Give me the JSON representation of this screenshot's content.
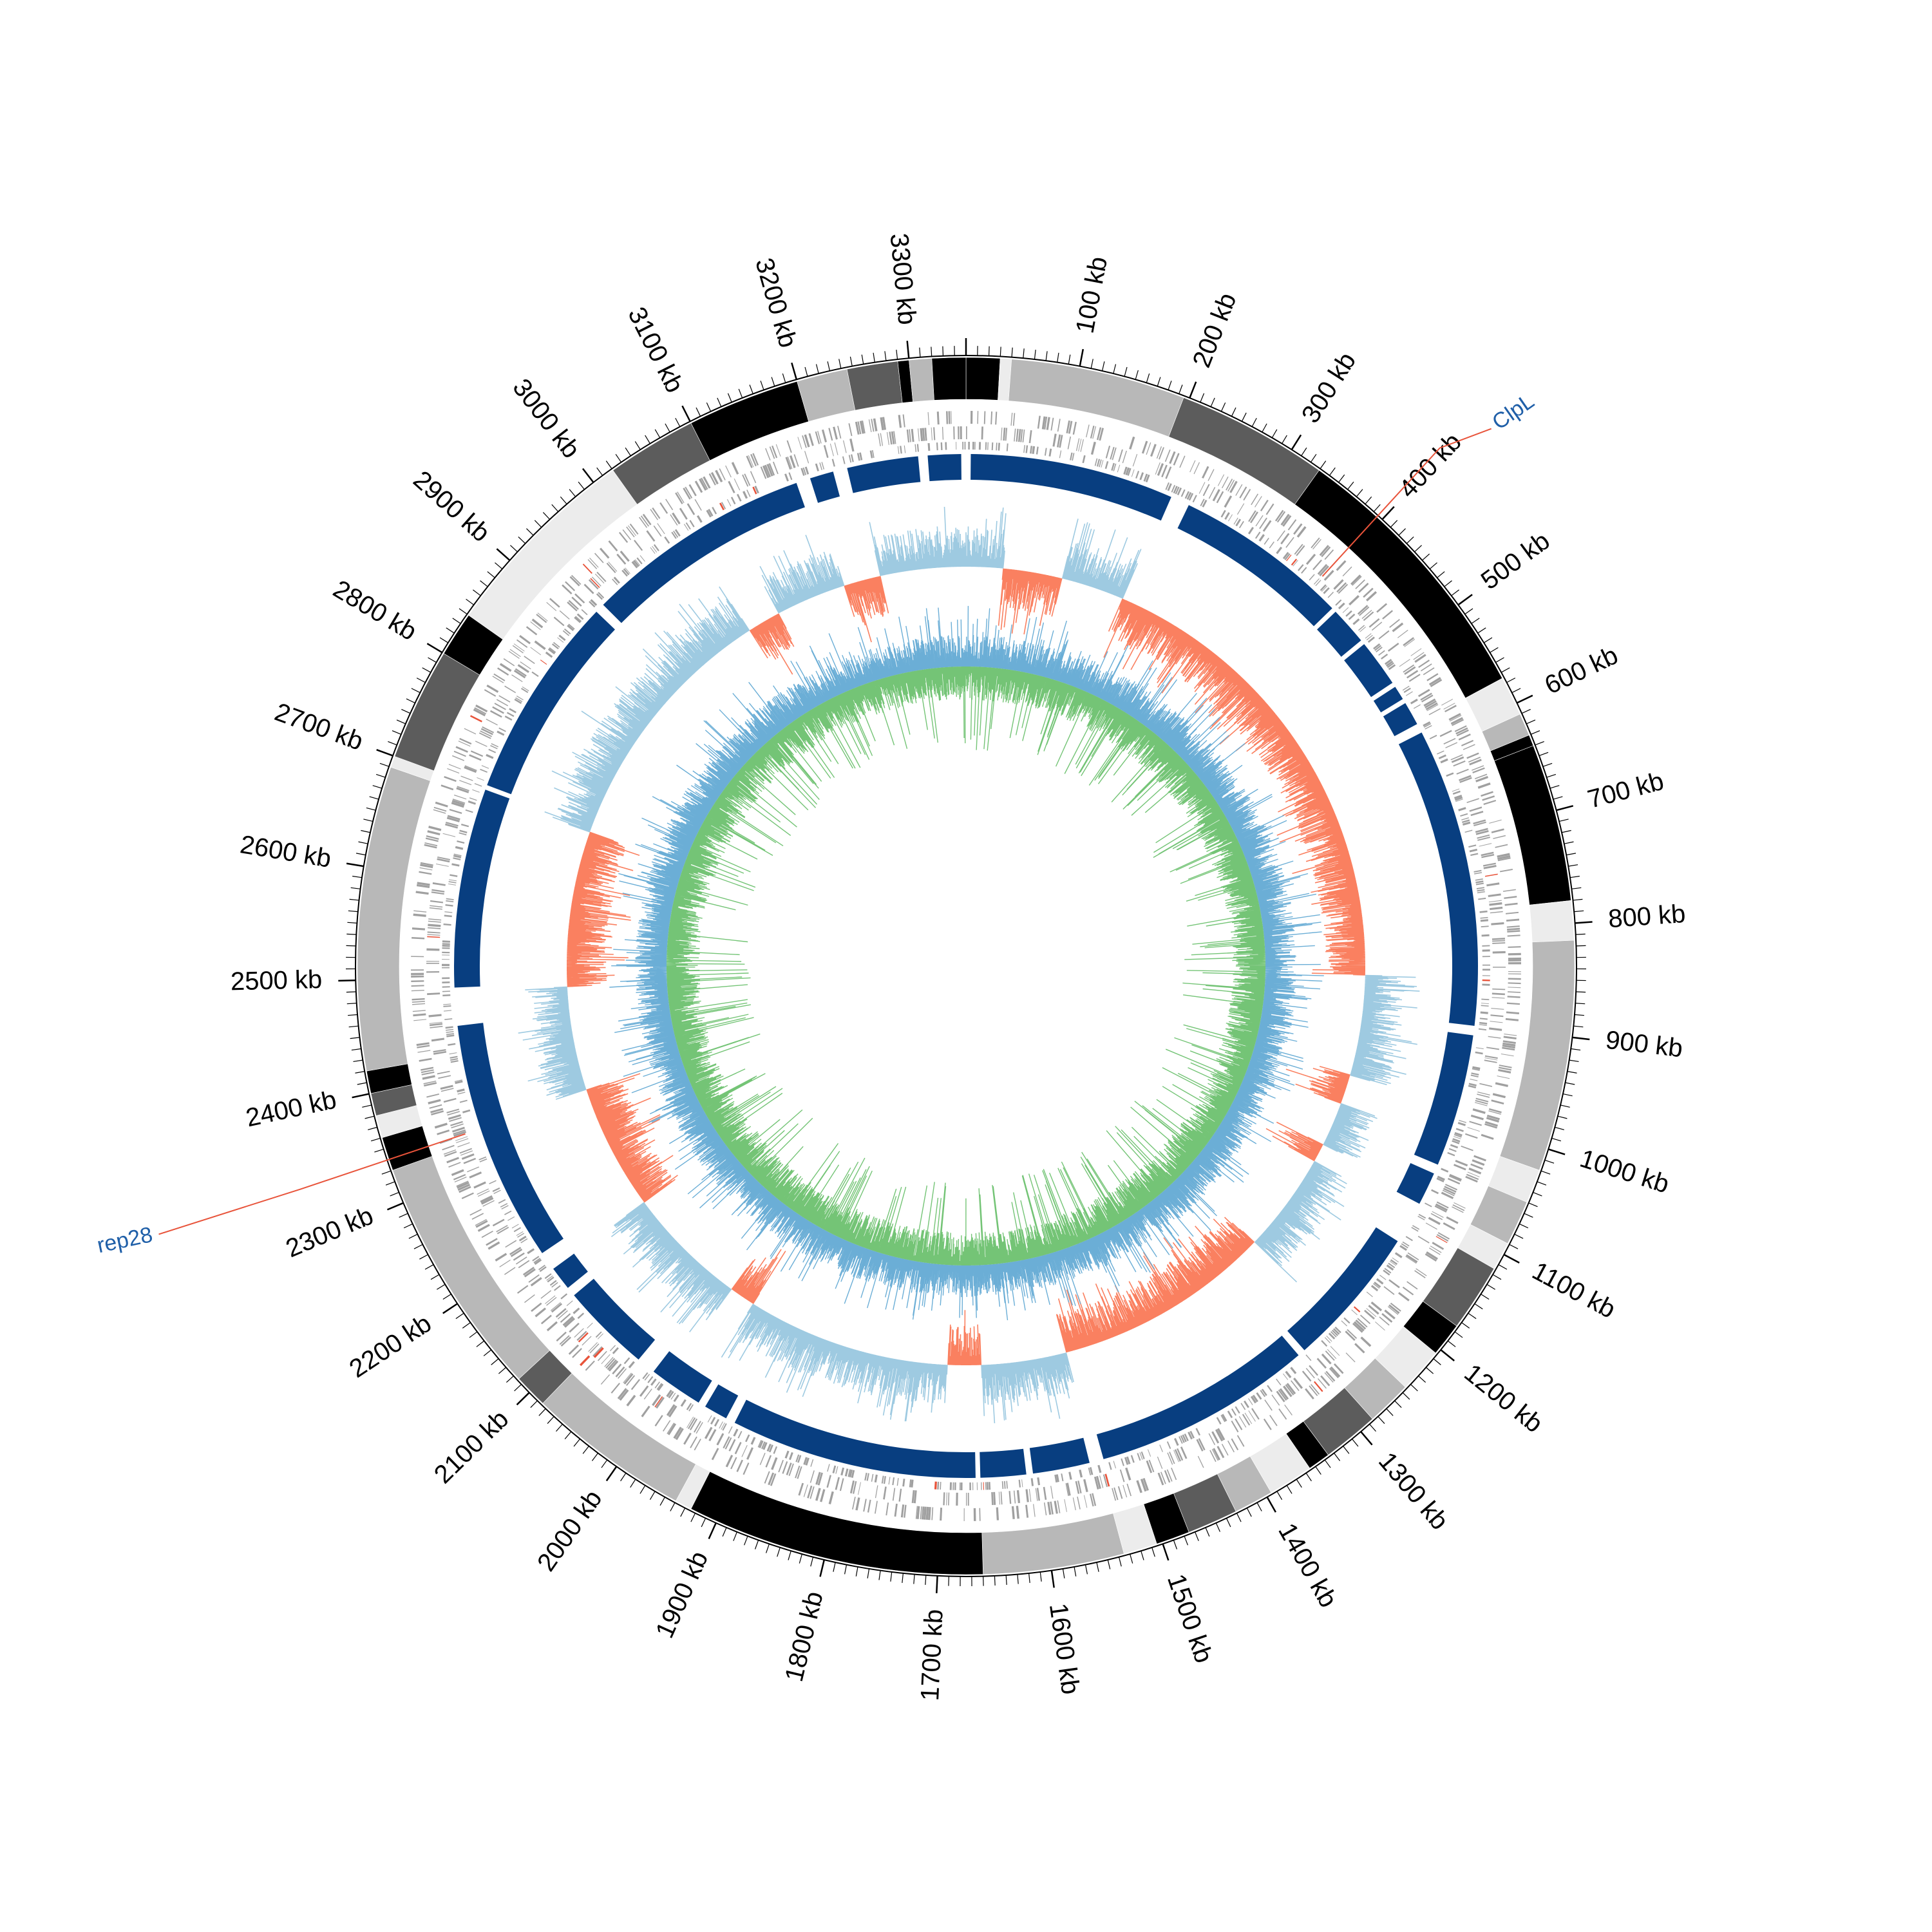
{
  "genome": {
    "length_kb": 3350,
    "unit_suffix": " kb"
  },
  "ticks": [
    100,
    200,
    300,
    400,
    500,
    600,
    700,
    800,
    900,
    1000,
    1100,
    1200,
    1300,
    1400,
    1500,
    1600,
    1700,
    1800,
    1900,
    2000,
    2100,
    2200,
    2300,
    2400,
    2500,
    2600,
    2700,
    2800,
    2900,
    3000,
    3100,
    3200,
    3300
  ],
  "tick_labels": [
    "100 kb",
    "200 kb",
    "300 kb",
    "400 kb",
    "500 kb",
    "600 kb",
    "700 kb",
    "800 kb",
    "900 kb",
    "1000 kb",
    "1100 kb",
    "1200 kb",
    "1300 kb",
    "1400 kb",
    "1500 kb",
    "1600 kb",
    "1700 kb",
    "1800 kb",
    "1900 kb",
    "2000 kb",
    "2100 kb",
    "2200 kb",
    "2300 kb",
    "2400 kb",
    "2500 kb",
    "2600 kb",
    "2700 kb",
    "2800 kb",
    "2900 kb",
    "3000 kb",
    "3100 kb",
    "3200 kb",
    "3300 kb"
  ],
  "callouts": [
    {
      "label": "ClpL",
      "position_kb": 395,
      "color": "#e8533a"
    },
    {
      "label": "rep28",
      "position_kb": 2340,
      "color": "#e8533a"
    }
  ],
  "colors": {
    "contig_black": "#000000",
    "contig_dark": "#5c5c5c",
    "contig_mid": "#b8b8b8",
    "contig_light": "#ececec",
    "genes": "#a0a0a0",
    "genes_highlight": "#e8533a",
    "homology": "#083e80",
    "skew_positive": "#fa8060",
    "skew_negative": "#9ecae1",
    "gc_outer": "#6baed6",
    "gc_inner": "#74c476"
  },
  "contigs": [
    {
      "start": 0,
      "end": 30,
      "shade": "black"
    },
    {
      "start": 30,
      "end": 40,
      "shade": "light"
    },
    {
      "start": 40,
      "end": 195,
      "shade": "mid"
    },
    {
      "start": 195,
      "end": 330,
      "shade": "dark"
    },
    {
      "start": 330,
      "end": 575,
      "shade": "black"
    },
    {
      "start": 575,
      "end": 610,
      "shade": "light"
    },
    {
      "start": 610,
      "end": 630,
      "shade": "mid"
    },
    {
      "start": 630,
      "end": 640,
      "shade": "black"
    },
    {
      "start": 640,
      "end": 780,
      "shade": "black"
    },
    {
      "start": 780,
      "end": 815,
      "shade": "light"
    },
    {
      "start": 815,
      "end": 1020,
      "shade": "mid"
    },
    {
      "start": 1020,
      "end": 1050,
      "shade": "light"
    },
    {
      "start": 1050,
      "end": 1090,
      "shade": "mid"
    },
    {
      "start": 1090,
      "end": 1115,
      "shade": "light"
    },
    {
      "start": 1115,
      "end": 1175,
      "shade": "dark"
    },
    {
      "start": 1175,
      "end": 1205,
      "shade": "black"
    },
    {
      "start": 1205,
      "end": 1245,
      "shade": "light"
    },
    {
      "start": 1245,
      "end": 1285,
      "shade": "mid"
    },
    {
      "start": 1285,
      "end": 1335,
      "shade": "dark"
    },
    {
      "start": 1335,
      "end": 1355,
      "shade": "black"
    },
    {
      "start": 1355,
      "end": 1395,
      "shade": "light"
    },
    {
      "start": 1395,
      "end": 1430,
      "shade": "mid"
    },
    {
      "start": 1430,
      "end": 1475,
      "shade": "dark"
    },
    {
      "start": 1475,
      "end": 1505,
      "shade": "black"
    },
    {
      "start": 1505,
      "end": 1535,
      "shade": "light"
    },
    {
      "start": 1535,
      "end": 1660,
      "shade": "mid"
    },
    {
      "start": 1660,
      "end": 1925,
      "shade": "black"
    },
    {
      "start": 1925,
      "end": 1940,
      "shade": "light"
    },
    {
      "start": 1940,
      "end": 2085,
      "shade": "mid"
    },
    {
      "start": 2085,
      "end": 2115,
      "shade": "dark"
    },
    {
      "start": 2115,
      "end": 2330,
      "shade": "mid"
    },
    {
      "start": 2330,
      "end": 2360,
      "shade": "black"
    },
    {
      "start": 2360,
      "end": 2380,
      "shade": "light"
    },
    {
      "start": 2380,
      "end": 2400,
      "shade": "dark"
    },
    {
      "start": 2400,
      "end": 2420,
      "shade": "black"
    },
    {
      "start": 2420,
      "end": 2690,
      "shade": "mid"
    },
    {
      "start": 2690,
      "end": 2700,
      "shade": "light"
    },
    {
      "start": 2700,
      "end": 2800,
      "shade": "dark"
    },
    {
      "start": 2800,
      "end": 2840,
      "shade": "black"
    },
    {
      "start": 2840,
      "end": 3020,
      "shade": "light"
    },
    {
      "start": 3020,
      "end": 3100,
      "shade": "dark"
    },
    {
      "start": 3100,
      "end": 3200,
      "shade": "black"
    },
    {
      "start": 3200,
      "end": 3245,
      "shade": "mid"
    },
    {
      "start": 3245,
      "end": 3290,
      "shade": "dark"
    },
    {
      "start": 3290,
      "end": 3300,
      "shade": "black"
    },
    {
      "start": 3300,
      "end": 3320,
      "shade": "mid"
    },
    {
      "start": 3320,
      "end": 3350,
      "shade": "black"
    }
  ],
  "homology_blocks": [
    {
      "start": 5,
      "end": 220
    },
    {
      "start": 240,
      "end": 425
    },
    {
      "start": 430,
      "end": 470
    },
    {
      "start": 475,
      "end": 525
    },
    {
      "start": 530,
      "end": 545
    },
    {
      "start": 550,
      "end": 575
    },
    {
      "start": 585,
      "end": 900
    },
    {
      "start": 910,
      "end": 1050
    },
    {
      "start": 1060,
      "end": 1095
    },
    {
      "start": 1140,
      "end": 1290
    },
    {
      "start": 1298,
      "end": 1530
    },
    {
      "start": 1545,
      "end": 1605
    },
    {
      "start": 1612,
      "end": 1660
    },
    {
      "start": 1665,
      "end": 1925
    },
    {
      "start": 1935,
      "end": 1960
    },
    {
      "start": 1968,
      "end": 2025
    },
    {
      "start": 2045,
      "end": 2140
    },
    {
      "start": 2150,
      "end": 2175
    },
    {
      "start": 2195,
      "end": 2450
    },
    {
      "start": 2490,
      "end": 2700
    },
    {
      "start": 2705,
      "end": 2920
    },
    {
      "start": 2930,
      "end": 3170
    },
    {
      "start": 3185,
      "end": 3210
    },
    {
      "start": 3225,
      "end": 3300
    },
    {
      "start": 3310,
      "end": 3345
    }
  ],
  "gc_skew_regions": [
    {
      "start": 0,
      "end": 50,
      "sign": "negative"
    },
    {
      "start": 50,
      "end": 130,
      "sign": "positive"
    },
    {
      "start": 130,
      "end": 215,
      "sign": "negative"
    },
    {
      "start": 215,
      "end": 850,
      "sign": "positive"
    },
    {
      "start": 850,
      "end": 985,
      "sign": "negative"
    },
    {
      "start": 985,
      "end": 1025,
      "sign": "positive"
    },
    {
      "start": 1025,
      "end": 1085,
      "sign": "negative"
    },
    {
      "start": 1085,
      "end": 1110,
      "sign": "positive"
    },
    {
      "start": 1110,
      "end": 1245,
      "sign": "negative"
    },
    {
      "start": 1245,
      "end": 1540,
      "sign": "positive"
    },
    {
      "start": 1540,
      "end": 1655,
      "sign": "negative"
    },
    {
      "start": 1655,
      "end": 1700,
      "sign": "positive"
    },
    {
      "start": 1700,
      "end": 1975,
      "sign": "negative"
    },
    {
      "start": 1975,
      "end": 2010,
      "sign": "positive"
    },
    {
      "start": 2010,
      "end": 2175,
      "sign": "negative"
    },
    {
      "start": 2175,
      "end": 2345,
      "sign": "positive"
    },
    {
      "start": 2345,
      "end": 2485,
      "sign": "negative"
    },
    {
      "start": 2485,
      "end": 2695,
      "sign": "positive"
    },
    {
      "start": 2695,
      "end": 3045,
      "sign": "negative"
    },
    {
      "start": 3045,
      "end": 3090,
      "sign": "positive"
    },
    {
      "start": 3090,
      "end": 3185,
      "sign": "negative"
    },
    {
      "start": 3185,
      "end": 3235,
      "sign": "positive"
    },
    {
      "start": 3235,
      "end": 3350,
      "sign": "negative"
    }
  ]
}
